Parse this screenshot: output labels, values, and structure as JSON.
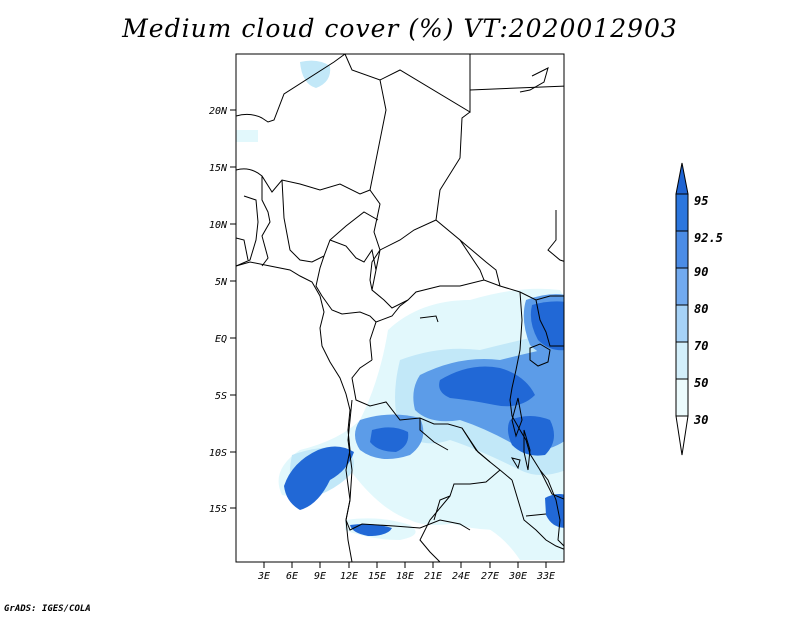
{
  "title": "Medium cloud cover (%) VT:2020012903",
  "credit": "GrADS: IGES/COLA",
  "axes": {
    "lat_labels": [
      "20N",
      "15N",
      "10N",
      "5N",
      "EQ",
      "5S",
      "10S",
      "15S"
    ],
    "lon_labels": [
      "3E",
      "6E",
      "9E",
      "12E",
      "15E",
      "18E",
      "21E",
      "24E",
      "27E",
      "30E",
      "33E"
    ]
  },
  "colorbar": {
    "levels": [
      "95",
      "92.5",
      "90",
      "80",
      "70",
      "50",
      "30"
    ],
    "colors": [
      "#1f64d2",
      "#2b76de",
      "#4b8ce6",
      "#72aaef",
      "#a6d2f7",
      "#d3effb",
      "#ecfbfd"
    ]
  },
  "map_colors": {
    "land": "#ffffff",
    "borders": "#000000",
    "cloud_light": "#e2f8fc",
    "cloud_pale": "#c2e8f8",
    "cloud_mid": "#5c9ce8",
    "cloud_dense": "#2168d6"
  }
}
